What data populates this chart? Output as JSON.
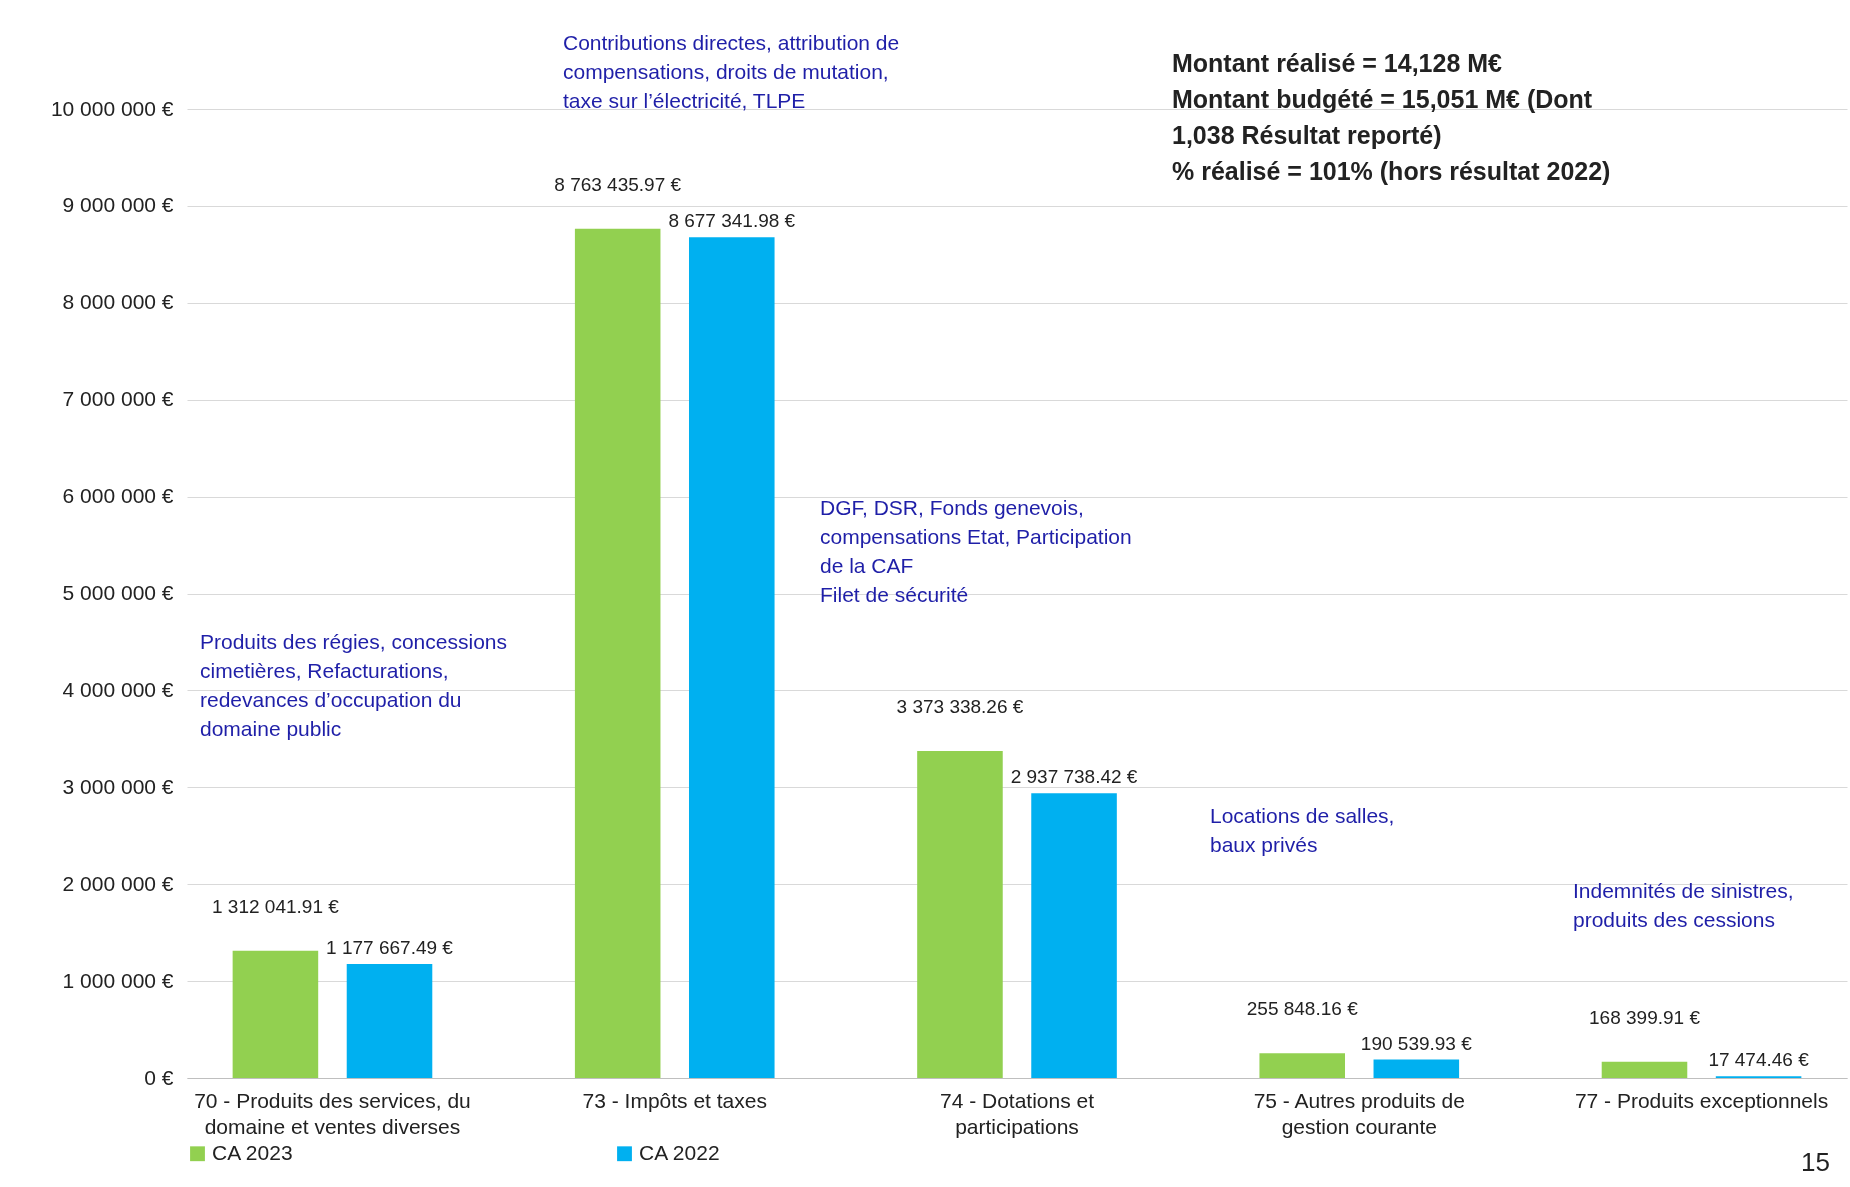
{
  "chart_data": {
    "type": "bar",
    "categories": [
      "70 - Produits des services, du domaine et ventes diverses",
      "73 - Impôts et taxes",
      "74 - Dotations et participations",
      "75 - Autres produits de gestion courante",
      "77 - Produits exceptionnels"
    ],
    "series": [
      {
        "name": "CA 2023",
        "color": "#92d050",
        "values": [
          1312041.91,
          8763435.97,
          3373338.26,
          255848.16,
          168399.91
        ],
        "value_labels": [
          "1 312 041.91 €",
          "8 763 435.97 €",
          "3 373 338.26 €",
          "255 848.16 €",
          "168 399.91 €"
        ]
      },
      {
        "name": "CA 2022",
        "color": "#00b0f0",
        "values": [
          1177667.49,
          8677341.98,
          2937738.42,
          190539.93,
          17474.46
        ],
        "value_labels": [
          "1 177 667.49 €",
          "8 677 341.98 €",
          "2 937 738.42 €",
          "190 539.93 €",
          "17 474.46 €"
        ]
      }
    ],
    "ylim": [
      0,
      10000000
    ],
    "yticks": [
      {
        "value": 0,
        "label": "0 €"
      },
      {
        "value": 1000000,
        "label": "1 000 000 €"
      },
      {
        "value": 2000000,
        "label": "2 000 000 €"
      },
      {
        "value": 3000000,
        "label": "3 000 000 €"
      },
      {
        "value": 4000000,
        "label": "4 000 000 €"
      },
      {
        "value": 5000000,
        "label": "5 000 000 €"
      },
      {
        "value": 6000000,
        "label": "6 000 000 €"
      },
      {
        "value": 7000000,
        "label": "7 000 000 €"
      },
      {
        "value": 8000000,
        "label": "8 000 000 €"
      },
      {
        "value": 9000000,
        "label": "9 000 000 €"
      },
      {
        "value": 10000000,
        "label": "10 000 000 €"
      }
    ],
    "grid": "y",
    "legend": "bottom",
    "annotations": [
      "Produits des régies, concessions\ncimetières, Refacturations,\nredevances d’occupation du\ndomaine public",
      "Contributions directes, attribution de\ncompensations, droits de mutation,\ntaxe sur l’électricité, TLPE",
      "DGF, DSR, Fonds genevois,\ncompensations Etat, Participation\nde la CAF\nFilet de sécurité",
      "Locations de salles,\nbaux privés",
      "Indemnités de sinistres,\nproduits des cessions",
      "Montant réalisé = 14,128 M€\nMontant budgété = 15,051 M€ (Dont\n1,038 Résultat reporté)\n% réalisé = 101% (hors résultat 2022)",
      "15"
    ]
  }
}
